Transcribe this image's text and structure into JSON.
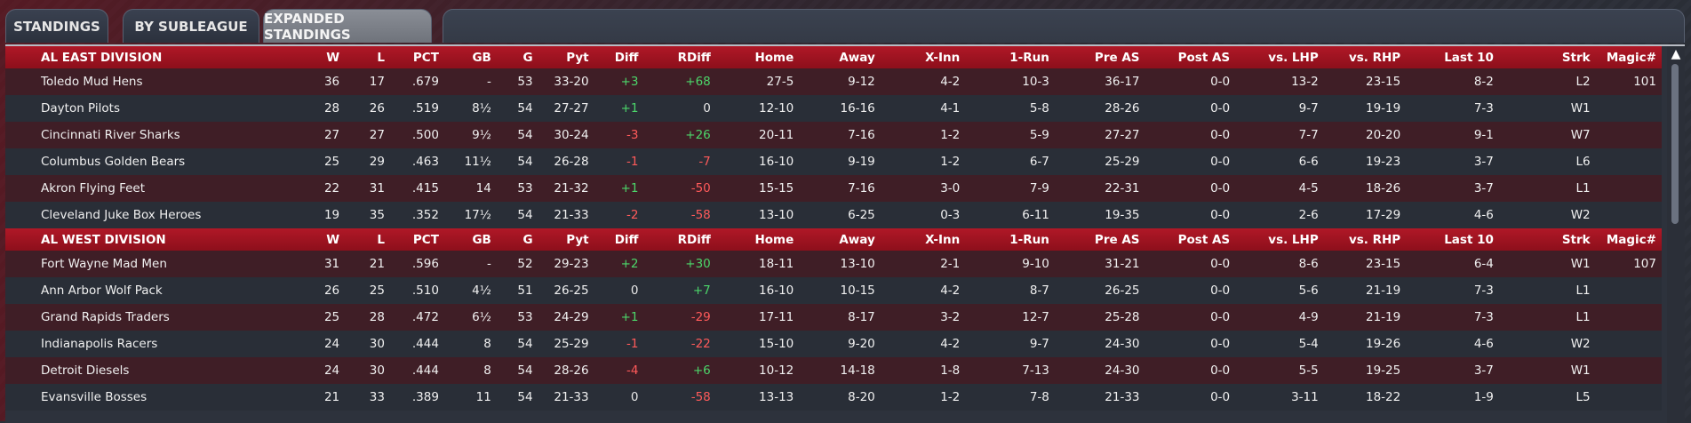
{
  "tabs": [
    {
      "label": "STANDINGS",
      "active": false
    },
    {
      "label": "BY SUBLEAGUE",
      "active": false
    },
    {
      "label": "EXPANDED STANDINGS",
      "active": true
    }
  ],
  "columns": [
    "W",
    "L",
    "PCT",
    "GB",
    "G",
    "Pyt",
    "Diff",
    "RDiff",
    "Home",
    "Away",
    "X-Inn",
    "1-Run",
    "Pre AS",
    "Post AS",
    "vs. LHP",
    "vs. RHP",
    "Last 10",
    "Strk",
    "Magic#"
  ],
  "divisions": [
    {
      "name": "AL EAST DIVISION",
      "rows": [
        {
          "team": "Toledo  Mud Hens",
          "w": "36",
          "l": "17",
          "pct": ".679",
          "gb": "-",
          "g": "53",
          "pyt": "33-20",
          "diff": "+3",
          "rdiff": "+68",
          "home": "27-5",
          "away": "9-12",
          "xinn": "4-2",
          "onerun": "10-3",
          "preas": "36-17",
          "postas": "0-0",
          "vlhp": "13-2",
          "vrhp": "23-15",
          "last10": "8-2",
          "strk": "L2",
          "magic": "101"
        },
        {
          "team": "Dayton Pilots",
          "w": "28",
          "l": "26",
          "pct": ".519",
          "gb": "8½",
          "g": "54",
          "pyt": "27-27",
          "diff": "+1",
          "rdiff": "0",
          "home": "12-10",
          "away": "16-16",
          "xinn": "4-1",
          "onerun": "5-8",
          "preas": "28-26",
          "postas": "0-0",
          "vlhp": "9-7",
          "vrhp": "19-19",
          "last10": "7-3",
          "strk": "W1",
          "magic": ""
        },
        {
          "team": "Cincinnati River Sharks",
          "w": "27",
          "l": "27",
          "pct": ".500",
          "gb": "9½",
          "g": "54",
          "pyt": "30-24",
          "diff": "-3",
          "rdiff": "+26",
          "home": "20-11",
          "away": "7-16",
          "xinn": "1-2",
          "onerun": "5-9",
          "preas": "27-27",
          "postas": "0-0",
          "vlhp": "7-7",
          "vrhp": "20-20",
          "last10": "9-1",
          "strk": "W7",
          "magic": ""
        },
        {
          "team": "Columbus Golden Bears",
          "w": "25",
          "l": "29",
          "pct": ".463",
          "gb": "11½",
          "g": "54",
          "pyt": "26-28",
          "diff": "-1",
          "rdiff": "-7",
          "home": "16-10",
          "away": "9-19",
          "xinn": "1-2",
          "onerun": "6-7",
          "preas": "25-29",
          "postas": "0-0",
          "vlhp": "6-6",
          "vrhp": "19-23",
          "last10": "3-7",
          "strk": "L6",
          "magic": ""
        },
        {
          "team": "Akron  Flying Feet",
          "w": "22",
          "l": "31",
          "pct": ".415",
          "gb": "14",
          "g": "53",
          "pyt": "21-32",
          "diff": "+1",
          "rdiff": "-50",
          "home": "15-15",
          "away": "7-16",
          "xinn": "3-0",
          "onerun": "7-9",
          "preas": "22-31",
          "postas": "0-0",
          "vlhp": "4-5",
          "vrhp": "18-26",
          "last10": "3-7",
          "strk": "L1",
          "magic": ""
        },
        {
          "team": "Cleveland Juke Box Heroes",
          "w": "19",
          "l": "35",
          "pct": ".352",
          "gb": "17½",
          "g": "54",
          "pyt": "21-33",
          "diff": "-2",
          "rdiff": "-58",
          "home": "13-10",
          "away": "6-25",
          "xinn": "0-3",
          "onerun": "6-11",
          "preas": "19-35",
          "postas": "0-0",
          "vlhp": "2-6",
          "vrhp": "17-29",
          "last10": "4-6",
          "strk": "W2",
          "magic": ""
        }
      ]
    },
    {
      "name": "AL WEST DIVISION",
      "rows": [
        {
          "team": "Fort Wayne Mad Men",
          "w": "31",
          "l": "21",
          "pct": ".596",
          "gb": "-",
          "g": "52",
          "pyt": "29-23",
          "diff": "+2",
          "rdiff": "+30",
          "home": "18-11",
          "away": "13-10",
          "xinn": "2-1",
          "onerun": "9-10",
          "preas": "31-21",
          "postas": "0-0",
          "vlhp": "8-6",
          "vrhp": "23-15",
          "last10": "6-4",
          "strk": "W1",
          "magic": "107"
        },
        {
          "team": "Ann Arbor Wolf Pack",
          "w": "26",
          "l": "25",
          "pct": ".510",
          "gb": "4½",
          "g": "51",
          "pyt": "26-25",
          "diff": "0",
          "rdiff": "+7",
          "home": "16-10",
          "away": "10-15",
          "xinn": "4-2",
          "onerun": "8-7",
          "preas": "26-25",
          "postas": "0-0",
          "vlhp": "5-6",
          "vrhp": "21-19",
          "last10": "7-3",
          "strk": "L1",
          "magic": ""
        },
        {
          "team": "Grand Rapids Traders",
          "w": "25",
          "l": "28",
          "pct": ".472",
          "gb": "6½",
          "g": "53",
          "pyt": "24-29",
          "diff": "+1",
          "rdiff": "-29",
          "home": "17-11",
          "away": "8-17",
          "xinn": "3-2",
          "onerun": "12-7",
          "preas": "25-28",
          "postas": "0-0",
          "vlhp": "4-9",
          "vrhp": "21-19",
          "last10": "7-3",
          "strk": "L1",
          "magic": ""
        },
        {
          "team": "Indianapolis Racers",
          "w": "24",
          "l": "30",
          "pct": ".444",
          "gb": "8",
          "g": "54",
          "pyt": "25-29",
          "diff": "-1",
          "rdiff": "-22",
          "home": "15-10",
          "away": "9-20",
          "xinn": "4-2",
          "onerun": "9-7",
          "preas": "24-30",
          "postas": "0-0",
          "vlhp": "5-4",
          "vrhp": "19-26",
          "last10": "4-6",
          "strk": "W2",
          "magic": ""
        },
        {
          "team": "Detroit Diesels",
          "w": "24",
          "l": "30",
          "pct": ".444",
          "gb": "8",
          "g": "54",
          "pyt": "28-26",
          "diff": "-4",
          "rdiff": "+6",
          "home": "10-12",
          "away": "14-18",
          "xinn": "1-8",
          "onerun": "7-13",
          "preas": "24-30",
          "postas": "0-0",
          "vlhp": "5-5",
          "vrhp": "19-25",
          "last10": "3-7",
          "strk": "W1",
          "magic": ""
        },
        {
          "team": "Evansville Bosses",
          "w": "21",
          "l": "33",
          "pct": ".389",
          "gb": "11",
          "g": "54",
          "pyt": "21-33",
          "diff": "0",
          "rdiff": "-58",
          "home": "13-13",
          "away": "8-20",
          "xinn": "1-2",
          "onerun": "7-8",
          "preas": "21-33",
          "postas": "0-0",
          "vlhp": "3-11",
          "vrhp": "18-22",
          "last10": "1-9",
          "strk": "L5",
          "magic": ""
        }
      ]
    }
  ],
  "scrollbar": {
    "up_icon": "▲"
  }
}
